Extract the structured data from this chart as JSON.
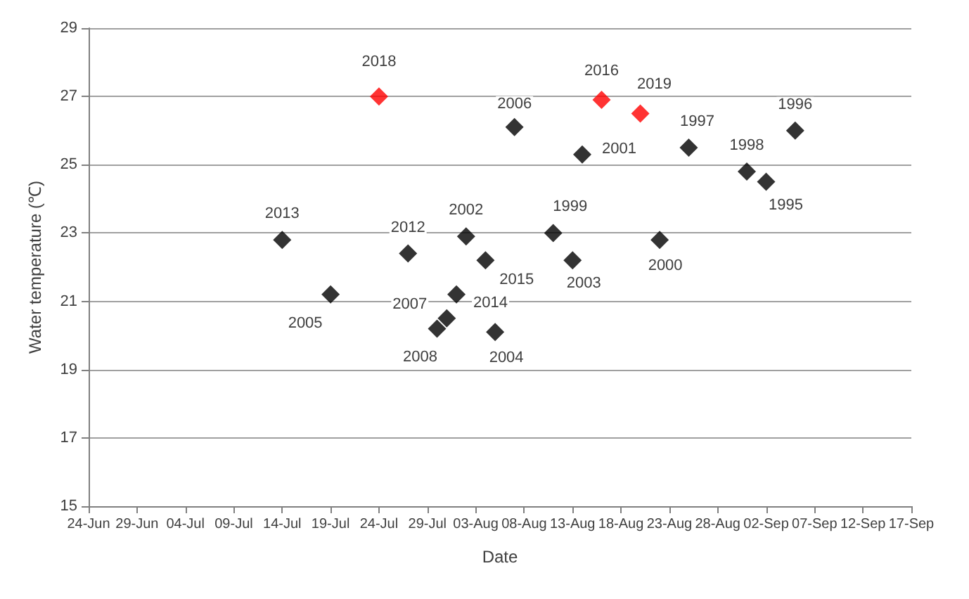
{
  "chart_data": {
    "type": "scatter",
    "xlabel": "Date",
    "ylabel": "Water temperature (℃)",
    "marker": "diamond",
    "grid": "y",
    "xlim": [
      "--06-24",
      "--09-17"
    ],
    "xticks": [
      {
        "value": "--06-24",
        "label": "24-Jun"
      },
      {
        "value": "--06-29",
        "label": "29-Jun"
      },
      {
        "value": "--07-04",
        "label": "04-Jul"
      },
      {
        "value": "--07-09",
        "label": "09-Jul"
      },
      {
        "value": "--07-14",
        "label": "14-Jul"
      },
      {
        "value": "--07-19",
        "label": "19-Jul"
      },
      {
        "value": "--07-24",
        "label": "24-Jul"
      },
      {
        "value": "--07-29",
        "label": "29-Jul"
      },
      {
        "value": "--08-03",
        "label": "03-Aug"
      },
      {
        "value": "--08-08",
        "label": "08-Aug"
      },
      {
        "value": "--08-13",
        "label": "13-Aug"
      },
      {
        "value": "--08-18",
        "label": "18-Aug"
      },
      {
        "value": "--08-23",
        "label": "23-Aug"
      },
      {
        "value": "--08-28",
        "label": "28-Aug"
      },
      {
        "value": "--09-02",
        "label": "02-Sep"
      },
      {
        "value": "--09-07",
        "label": "07-Sep"
      },
      {
        "value": "--09-12",
        "label": "12-Sep"
      },
      {
        "value": "--09-17",
        "label": "17-Sep"
      }
    ],
    "ylim": [
      15,
      29
    ],
    "yticks": [
      15,
      17,
      19,
      21,
      23,
      25,
      27,
      29
    ],
    "series": [
      {
        "color": "#000000",
        "x": [
          "--07-14",
          "--07-19",
          "--07-27",
          "--07-30",
          "--07-31",
          "--08-01",
          "--08-02",
          "--08-04",
          "--08-05",
          "--08-07",
          "--08-11",
          "--08-13",
          "--08-14",
          "--08-22",
          "--08-25",
          "--08-31",
          "--09-02",
          "--09-05"
        ],
        "values": [
          22.8,
          21.2,
          22.4,
          20.2,
          20.5,
          21.2,
          22.9,
          22.2,
          20.1,
          26.1,
          23.0,
          22.2,
          25.3,
          22.8,
          25.5,
          24.8,
          24.5,
          26.0
        ]
      },
      {
        "color": "#ff0000",
        "x": [
          "--07-24",
          "--08-16",
          "--08-20"
        ],
        "values": [
          27.0,
          26.9,
          26.5
        ]
      }
    ],
    "annotations": [
      {
        "text": "2013",
        "x": "--07-14",
        "y": 22.8
      },
      {
        "text": "2005",
        "x": "--07-19",
        "y": 21.2
      },
      {
        "text": "2012",
        "x": "--07-27",
        "y": 22.4
      },
      {
        "text": "2008",
        "x": "--07-30",
        "y": 20.2
      },
      {
        "text": "2007",
        "x": "--07-31",
        "y": 20.5
      },
      {
        "text": "2014",
        "x": "--08-01",
        "y": 21.2
      },
      {
        "text": "2002",
        "x": "--08-02",
        "y": 22.9
      },
      {
        "text": "2015",
        "x": "--08-04",
        "y": 22.2
      },
      {
        "text": "2004",
        "x": "--08-05",
        "y": 20.1
      },
      {
        "text": "2006",
        "x": "--08-07",
        "y": 26.1
      },
      {
        "text": "1999",
        "x": "--08-11",
        "y": 23.0
      },
      {
        "text": "2003",
        "x": "--08-13",
        "y": 22.2
      },
      {
        "text": "2001",
        "x": "--08-14",
        "y": 25.3
      },
      {
        "text": "2000",
        "x": "--08-22",
        "y": 22.8
      },
      {
        "text": "1997",
        "x": "--08-25",
        "y": 25.5
      },
      {
        "text": "1998",
        "x": "--08-31",
        "y": 24.8
      },
      {
        "text": "1995",
        "x": "--09-02",
        "y": 24.5
      },
      {
        "text": "1996",
        "x": "--09-05",
        "y": 26.0
      },
      {
        "text": "2018",
        "x": "--07-24",
        "y": 27.0
      },
      {
        "text": "2016",
        "x": "--08-16",
        "y": 26.9
      },
      {
        "text": "2019",
        "x": "--08-20",
        "y": 26.5
      }
    ]
  }
}
